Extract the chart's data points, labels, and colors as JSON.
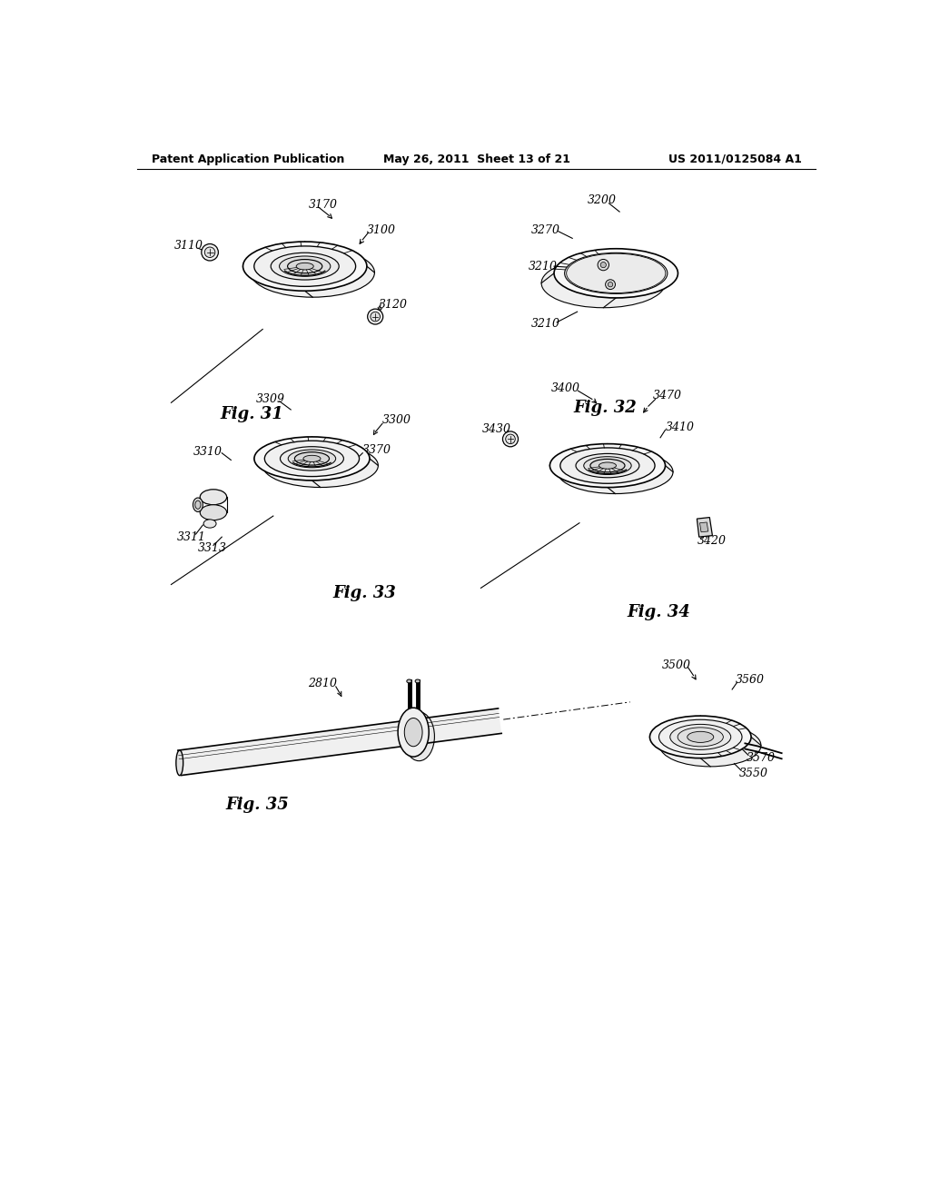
{
  "background_color": "#ffffff",
  "header_left": "Patent Application Publication",
  "header_center": "May 26, 2011  Sheet 13 of 21",
  "header_right": "US 2011/0125084 A1",
  "fig31_label": "Fig. 31",
  "fig32_label": "Fig. 32",
  "fig33_label": "Fig. 33",
  "fig34_label": "Fig. 34",
  "fig35_label": "Fig. 35",
  "text_color": "#000000",
  "line_color": "#000000",
  "header_fontsize": 9,
  "label_fontsize": 9,
  "fig_label_fontsize": 13
}
